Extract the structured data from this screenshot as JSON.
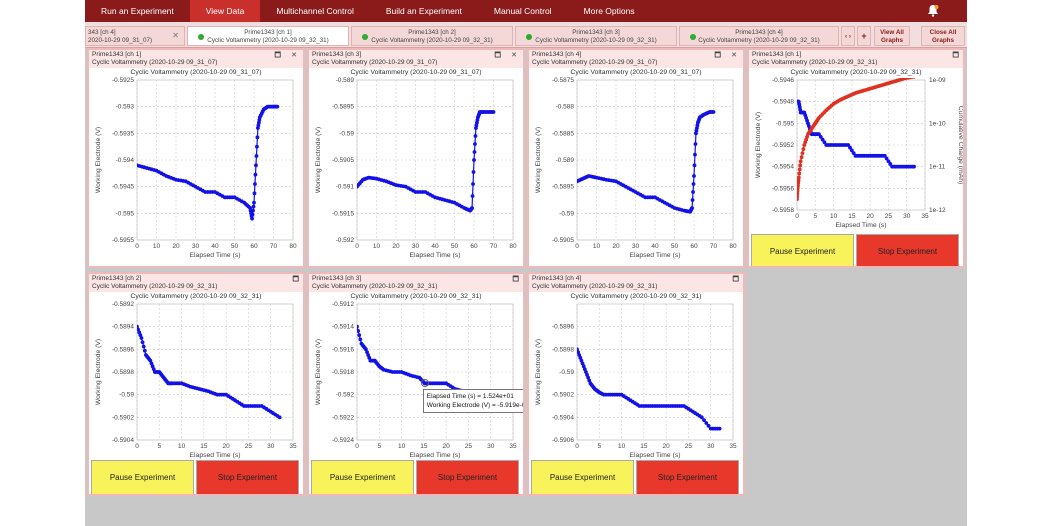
{
  "menu": [
    "Run an Experiment",
    "View Data",
    "Multichannel Control",
    "Build an Experiment",
    "Manual Control",
    "More Options"
  ],
  "tabs": [
    {
      "l1": "343 [ch 4]",
      "l2": "2020-10-29 09_31_07)"
    },
    {
      "l1": "Prime1343 [ch 1]",
      "l2": "Cyclic Voltammetry (2020-10-29 09_32_31)"
    },
    {
      "l1": "Prime1343 [ch 2]",
      "l2": "Cyclic Voltammetry (2020-10-29 09_32_31)"
    },
    {
      "l1": "Prime1343 [ch 3]",
      "l2": "Cyclic Voltammetry (2020-10-29 09_32_31)"
    },
    {
      "l1": "Prime1343 [ch 4]",
      "l2": "Cyclic Voltammetry (2020-10-29 09_32_31)"
    }
  ],
  "tab_controls": {
    "nav": "‹ ›",
    "add": "+",
    "view_all": "View All Graphs",
    "close_all": "Close All Graphs"
  },
  "buttons": {
    "pause": "Pause Experiment",
    "stop": "Stop Experiment"
  },
  "tooltip": {
    "line1": "Elapsed Time (s) = 1.524e+01",
    "line2": "Working Electrode (V) = -5.919e-01"
  },
  "chart_data": [
    {
      "type": "scatter",
      "header": "Prime1343 [ch 1]",
      "subheader": "Cyclic Voltammetry (2020-10-29 09_31_07)",
      "title": "Cyclic Voltammetry (2020-10-29 09_31_07)",
      "xlabel": "Elapsed Time (s)",
      "ylabel": "Working Electrode (V)",
      "xlim": [
        0,
        80
      ],
      "ylim": [
        -0.5955,
        -0.5925
      ],
      "xticks": [
        0,
        10,
        20,
        30,
        40,
        50,
        60,
        70,
        80
      ],
      "yticks": [
        -0.5925,
        -0.593,
        -0.5935,
        -0.594,
        -0.5945,
        -0.595,
        -0.5955
      ],
      "ytick_labels": [
        "-0.5925",
        "-0.593",
        "-0.5935",
        "-0.594",
        "-0.5945",
        "-0.595",
        "-0.5955"
      ],
      "x": [
        0,
        5,
        10,
        15,
        20,
        25,
        30,
        35,
        40,
        45,
        50,
        55,
        58,
        59,
        60,
        61,
        62,
        63,
        65,
        67,
        70,
        72
      ],
      "y": [
        -0.5941,
        -0.59415,
        -0.5942,
        -0.5943,
        -0.59437,
        -0.5944,
        -0.5945,
        -0.5946,
        -0.5946,
        -0.5947,
        -0.5947,
        -0.5948,
        -0.5949,
        -0.5951,
        -0.5948,
        -0.5941,
        -0.5934,
        -0.5932,
        -0.59305,
        -0.593,
        -0.593,
        -0.593
      ]
    },
    {
      "type": "scatter",
      "header": "Prime1343 [ch 3]",
      "subheader": "Cyclic Voltammetry (2020-10-29 09_31_07)",
      "title": "Cyclic Voltammetry (2020-10-29 09_31_07)",
      "xlabel": "Elapsed Time (s)",
      "ylabel": "Working Electrode (V)",
      "xlim": [
        0,
        80
      ],
      "ylim": [
        -0.592,
        -0.589
      ],
      "xticks": [
        0,
        10,
        20,
        30,
        40,
        50,
        60,
        70,
        80
      ],
      "yticks": [
        -0.589,
        -0.5895,
        -0.59,
        -0.5905,
        -0.591,
        -0.5915,
        -0.592
      ],
      "ytick_labels": [
        "-0.589",
        "-0.5895",
        "-0.59",
        "-0.5905",
        "-0.591",
        "-0.5915",
        "-0.592"
      ],
      "x": [
        0,
        3,
        6,
        10,
        15,
        20,
        25,
        30,
        35,
        40,
        45,
        50,
        55,
        58,
        59,
        60,
        61,
        62,
        63,
        65,
        68,
        70
      ],
      "y": [
        -0.591,
        -0.59087,
        -0.59083,
        -0.59085,
        -0.5909,
        -0.59097,
        -0.591,
        -0.5911,
        -0.5911,
        -0.5912,
        -0.59125,
        -0.5913,
        -0.5914,
        -0.59145,
        -0.5914,
        -0.5905,
        -0.5899,
        -0.5897,
        -0.5896,
        -0.5896,
        -0.5896,
        -0.5896
      ]
    },
    {
      "type": "scatter",
      "header": "Prime1343 [ch 4]",
      "subheader": "Cyclic Voltammetry (2020-10-29 09_31_07)",
      "title": "Cyclic Voltammetry (2020-10-29 09_31_07)",
      "xlabel": "Elapsed Time (s)",
      "ylabel": "Working Electrode (V)",
      "xlim": [
        0,
        80
      ],
      "ylim": [
        -0.5905,
        -0.5875
      ],
      "xticks": [
        0,
        10,
        20,
        30,
        40,
        50,
        60,
        70,
        80
      ],
      "yticks": [
        -0.5875,
        -0.588,
        -0.5885,
        -0.589,
        -0.5895,
        -0.59,
        -0.5905
      ],
      "ytick_labels": [
        "-0.5875",
        "-0.588",
        "-0.5885",
        "-0.589",
        "-0.5895",
        "-0.59",
        "-0.5905"
      ],
      "x": [
        0,
        3,
        6,
        10,
        15,
        20,
        25,
        30,
        35,
        40,
        45,
        50,
        55,
        58,
        59,
        60,
        61,
        62,
        63,
        65,
        68,
        70
      ],
      "y": [
        -0.5894,
        -0.58935,
        -0.5893,
        -0.58933,
        -0.58937,
        -0.5894,
        -0.5895,
        -0.5896,
        -0.5897,
        -0.5897,
        -0.5898,
        -0.5899,
        -0.58995,
        -0.58997,
        -0.5899,
        -0.5893,
        -0.5885,
        -0.5883,
        -0.5882,
        -0.58815,
        -0.5881,
        -0.5881
      ]
    },
    {
      "type": "scatter",
      "header": "Prime1343 [ch 1]",
      "subheader": "Cyclic Voltammetry (2020-10-29 09_32_31)",
      "title": "Cyclic Voltammetry (2020-10-29 09_32_31)",
      "xlabel": "Elapsed Time (s)",
      "ylabel": "Working Electrode (V)",
      "y2label": "Cumulative Charge (mAh)",
      "xlim": [
        0,
        35
      ],
      "ylim": [
        -0.5958,
        -0.5946
      ],
      "xticks": [
        0,
        5,
        10,
        15,
        20,
        25,
        30,
        35
      ],
      "yticks": [
        -0.5946,
        -0.5948,
        -0.595,
        -0.5952,
        -0.5954,
        -0.5956,
        -0.5958
      ],
      "ytick_labels": [
        "-0.5946",
        "-0.5948",
        "-0.595",
        "-0.5952",
        "-0.5954",
        "-0.5956",
        "-0.5958"
      ],
      "y2ticks": [
        "1e-09",
        "1e-10",
        "1e-11",
        "1e-12"
      ],
      "x": [
        0,
        0.5,
        1,
        2,
        3,
        4,
        5,
        6,
        8,
        10,
        12,
        14,
        16,
        18,
        20,
        22,
        24,
        26,
        28,
        30,
        32
      ],
      "y": [
        -0.5948,
        -0.5948,
        -0.5949,
        -0.5949,
        -0.595,
        -0.5951,
        -0.5951,
        -0.5951,
        -0.5952,
        -0.5952,
        -0.5952,
        -0.5952,
        -0.5953,
        -0.5953,
        -0.5953,
        -0.5953,
        -0.5953,
        -0.5954,
        -0.5954,
        -0.5954,
        -0.5954
      ],
      "series2_x": [
        0,
        0.2,
        0.5,
        1,
        2,
        3,
        4,
        5,
        6,
        8,
        10,
        12,
        14,
        16,
        18,
        20,
        22,
        24,
        26,
        28,
        30,
        32
      ],
      "series2_y": [
        -0.5957,
        -0.5956,
        -0.5955,
        -0.59535,
        -0.5952,
        -0.5951,
        -0.59505,
        -0.595,
        -0.59495,
        -0.59488,
        -0.59482,
        -0.59478,
        -0.59475,
        -0.59472,
        -0.5947,
        -0.59468,
        -0.59466,
        -0.59464,
        -0.59462,
        -0.5946,
        -0.59458,
        -0.59457
      ]
    },
    {
      "type": "scatter",
      "header": "Prime1343 [ch 2]",
      "subheader": "Cyclic Voltammetry (2020-10-29 09_32_31)",
      "title": "Cyclic Voltammetry (2020-10-29 09_32_31)",
      "xlabel": "Elapsed Time (s)",
      "ylabel": "Working Electrode (V)",
      "xlim": [
        0,
        35
      ],
      "ylim": [
        -0.5904,
        -0.5892
      ],
      "xticks": [
        0,
        5,
        10,
        15,
        20,
        25,
        30,
        35
      ],
      "yticks": [
        -0.5892,
        -0.5894,
        -0.5896,
        -0.5898,
        -0.59,
        -0.5902,
        -0.5904
      ],
      "ytick_labels": [
        "-0.5892",
        "-0.5894",
        "-0.5896",
        "-0.5898",
        "-0.59",
        "-0.5902",
        "-0.5904"
      ],
      "x": [
        0,
        1,
        2,
        3,
        4,
        5,
        6,
        7,
        8,
        10,
        12,
        14,
        16,
        18,
        20,
        22,
        24,
        26,
        28,
        30,
        32
      ],
      "y": [
        -0.5894,
        -0.5895,
        -0.58965,
        -0.5897,
        -0.5898,
        -0.5898,
        -0.58985,
        -0.5899,
        -0.5899,
        -0.5899,
        -0.58993,
        -0.58995,
        -0.58997,
        -0.59,
        -0.59,
        -0.59005,
        -0.5901,
        -0.5901,
        -0.5901,
        -0.59015,
        -0.5902
      ]
    },
    {
      "type": "scatter",
      "header": "Prime1343 [ch 3]",
      "subheader": "Cyclic Voltammetry (2020-10-29 09_32_31)",
      "title": "Cyclic Voltammetry (2020-10-29 09_32_31)",
      "xlabel": "Elapsed Time (s)",
      "ylabel": "Working Electrode (V)",
      "xlim": [
        0,
        35
      ],
      "ylim": [
        -0.5924,
        -0.5912
      ],
      "xticks": [
        0,
        5,
        10,
        15,
        20,
        25,
        30,
        35
      ],
      "yticks": [
        -0.5912,
        -0.5914,
        -0.5916,
        -0.5918,
        -0.592,
        -0.5922,
        -0.5924
      ],
      "ytick_labels": [
        "-0.5912",
        "-0.5914",
        "-0.5916",
        "-0.5918",
        "-0.592",
        "-0.5922",
        "-0.5924"
      ],
      "x": [
        0,
        1,
        2,
        3,
        4,
        5,
        6,
        8,
        10,
        12,
        14,
        15.2,
        16,
        18,
        20,
        22,
        24,
        26,
        28,
        30,
        32
      ],
      "y": [
        -0.5914,
        -0.59155,
        -0.5916,
        -0.5917,
        -0.5917,
        -0.59175,
        -0.59178,
        -0.5918,
        -0.5918,
        -0.59183,
        -0.59185,
        -0.5919,
        -0.5919,
        -0.5919,
        -0.5919,
        -0.59195,
        -0.59197,
        -0.592,
        -0.592,
        -0.592,
        -0.59205
      ]
    },
    {
      "type": "scatter",
      "header": "Prime1343 [ch 4]",
      "subheader": "Cyclic Voltammetry (2020-10-29 09_32_31)",
      "title": "Cyclic Voltammetry (2020-10-29 09_32_31)",
      "xlabel": "Elapsed Time (s)",
      "ylabel": "Working Electrode (V)",
      "xlim": [
        0,
        35
      ],
      "ylim": [
        -0.5906,
        -0.5894
      ],
      "xticks": [
        0,
        5,
        10,
        15,
        20,
        25,
        30,
        35
      ],
      "yticks": [
        -0.5896,
        -0.5898,
        -0.59,
        -0.5902,
        -0.5904,
        -0.5906
      ],
      "ytick_labels": [
        "-0.5896",
        "-0.5898",
        "-0.59",
        "-0.5902",
        "-0.5904",
        "-0.5906"
      ],
      "x": [
        0,
        1,
        2,
        3,
        4,
        5,
        6,
        8,
        10,
        12,
        14,
        16,
        18,
        20,
        22,
        24,
        26,
        28,
        30,
        32
      ],
      "y": [
        -0.5898,
        -0.5899,
        -0.59,
        -0.5901,
        -0.59015,
        -0.59018,
        -0.5902,
        -0.5902,
        -0.5902,
        -0.59025,
        -0.5903,
        -0.5903,
        -0.5903,
        -0.5903,
        -0.5903,
        -0.5903,
        -0.59035,
        -0.5904,
        -0.5905,
        -0.5905
      ]
    }
  ],
  "colors": {
    "menubar": "#8b1a1a",
    "active_menu": "#c9302c",
    "series": "#1212e8",
    "series2": "#e03020",
    "pause": "#f8f35a",
    "stop": "#e8382c"
  }
}
